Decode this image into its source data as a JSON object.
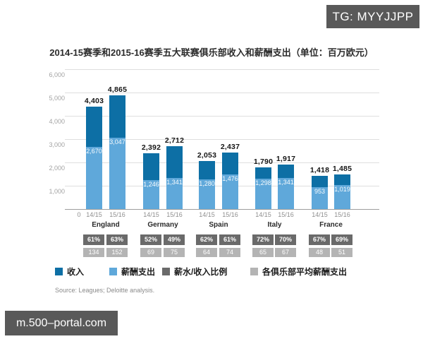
{
  "badges": {
    "tg": "TG: MYYJJPP",
    "watermark": "m.500–portal.com"
  },
  "title": "2014-15赛季和2015-16赛季五大联赛俱乐部收入和薪酬支出（单位：百万欧元）",
  "source": "Source: Leagues; Deloitte analysis.",
  "colors": {
    "revenue": "#0d6fa5",
    "wages": "#5fa8da",
    "ratio_badge": "#6a6a6a",
    "avg_badge": "#b4b4b4",
    "watermark_bg": "#595959"
  },
  "legend": [
    {
      "name": "revenue",
      "label": "收入",
      "color": "#0d6fa5"
    },
    {
      "name": "wages",
      "label": "薪酬支出",
      "color": "#5fa8da"
    },
    {
      "name": "wage-revenue-ratio",
      "label": "薪水/收入比例",
      "color": "#6a6a6a"
    },
    {
      "name": "avg-club-wages",
      "label": "各俱乐部平均薪酬支出",
      "color": "#b4b4b4"
    }
  ],
  "chart_data": {
    "type": "bar",
    "stacked": true,
    "title": "2014-15赛季和2015-16赛季五大联赛俱乐部收入和薪酬支出（单位：百万欧元）",
    "unit": "百万欧元",
    "ylim": [
      0,
      6000
    ],
    "ytick_interval": 1000,
    "ytick_labels": [
      "6,000",
      "5,000",
      "4,000",
      "3,000",
      "2,000",
      "1,000"
    ],
    "origin_label": "0",
    "seasons": [
      "14/15",
      "15/16"
    ],
    "grid": true,
    "legend_position": "bottom",
    "groups": [
      {
        "league": "England",
        "bars": [
          {
            "season": "14/15",
            "revenue": 4403,
            "revenue_label": "4,403",
            "wages": 2670,
            "wages_label": "2,670",
            "ratio": "61%",
            "avg": "134"
          },
          {
            "season": "15/16",
            "revenue": 4865,
            "revenue_label": "4,865",
            "wages": 3047,
            "wages_label": "3,047",
            "ratio": "63%",
            "avg": "152"
          }
        ]
      },
      {
        "league": "Germany",
        "bars": [
          {
            "season": "14/15",
            "revenue": 2392,
            "revenue_label": "2,392",
            "wages": 1246,
            "wages_label": "1,246",
            "ratio": "52%",
            "avg": "69"
          },
          {
            "season": "15/16",
            "revenue": 2712,
            "revenue_label": "2,712",
            "wages": 1341,
            "wages_label": "1,341",
            "ratio": "49%",
            "avg": "75"
          }
        ]
      },
      {
        "league": "Spain",
        "bars": [
          {
            "season": "14/15",
            "revenue": 2053,
            "revenue_label": "2,053",
            "wages": 1280,
            "wages_label": "1,280",
            "ratio": "62%",
            "avg": "64"
          },
          {
            "season": "15/16",
            "revenue": 2437,
            "revenue_label": "2,437",
            "wages": 1476,
            "wages_label": "1,476",
            "ratio": "61%",
            "avg": "74"
          }
        ]
      },
      {
        "league": "Italy",
        "bars": [
          {
            "season": "14/15",
            "revenue": 1790,
            "revenue_label": "1,790",
            "wages": 1298,
            "wages_label": "1,298",
            "ratio": "72%",
            "avg": "65"
          },
          {
            "season": "15/16",
            "revenue": 1917,
            "revenue_label": "1,917",
            "wages": 1341,
            "wages_label": "1,341",
            "ratio": "70%",
            "avg": "67"
          }
        ]
      },
      {
        "league": "France",
        "bars": [
          {
            "season": "14/15",
            "revenue": 1418,
            "revenue_label": "1,418",
            "wages": 953,
            "wages_label": "953",
            "ratio": "67%",
            "avg": "48"
          },
          {
            "season": "15/16",
            "revenue": 1485,
            "revenue_label": "1,485",
            "wages": 1019,
            "wages_label": "1,019",
            "ratio": "69%",
            "avg": "51"
          }
        ]
      }
    ]
  }
}
